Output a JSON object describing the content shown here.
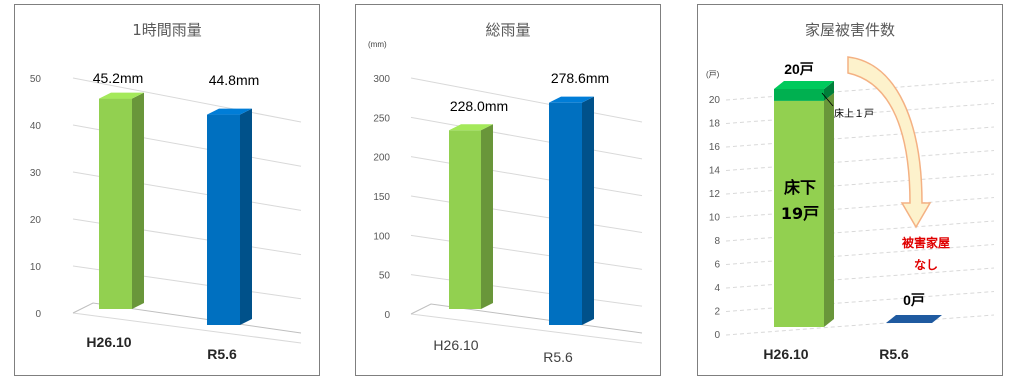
{
  "chart_data": [
    {
      "type": "bar",
      "title": "1時間雨量",
      "categories": [
        "H26.10",
        "R5.6"
      ],
      "values": [
        45.2,
        44.8
      ],
      "data_labels": [
        "45.2mm",
        "44.8mm"
      ],
      "yticks": [
        "0",
        "10",
        "20",
        "30",
        "40",
        "50"
      ],
      "ylim": [
        0,
        50
      ],
      "grid": true,
      "colors": [
        "#92d050",
        "#0070c0"
      ]
    },
    {
      "type": "bar",
      "title": "総雨量",
      "unit": "(mm)",
      "categories": [
        "H26.10",
        "R5.6"
      ],
      "values": [
        228.0,
        278.6
      ],
      "data_labels": [
        "228.0mm",
        "278.6mm"
      ],
      "yticks": [
        "0",
        "50",
        "100",
        "150",
        "200",
        "250",
        "300"
      ],
      "ylim": [
        0,
        300
      ],
      "grid": true,
      "colors": [
        "#92d050",
        "#0070c0"
      ]
    },
    {
      "type": "bar",
      "title": "家屋被害件数",
      "unit": "(戸)",
      "categories": [
        "H26.10",
        "R5.6"
      ],
      "series": [
        {
          "values": [
            19,
            0
          ],
          "color": "#92d050"
        },
        {
          "values": [
            1,
            0
          ],
          "color": "#00b050"
        }
      ],
      "totals": [
        20,
        0
      ],
      "data_labels": [
        "20戸",
        "0戸"
      ],
      "annotations": {
        "floor_below": [
          "床下",
          "19戸"
        ],
        "floor_above": "床上１戸",
        "no_damage": [
          "被害家屋",
          "なし"
        ]
      },
      "yticks": [
        "0",
        "2",
        "4",
        "6",
        "8",
        "10",
        "12",
        "14",
        "16",
        "18",
        "20"
      ],
      "ylim": [
        0,
        20
      ],
      "grid": true,
      "arrow_color": "#f4b183"
    }
  ]
}
